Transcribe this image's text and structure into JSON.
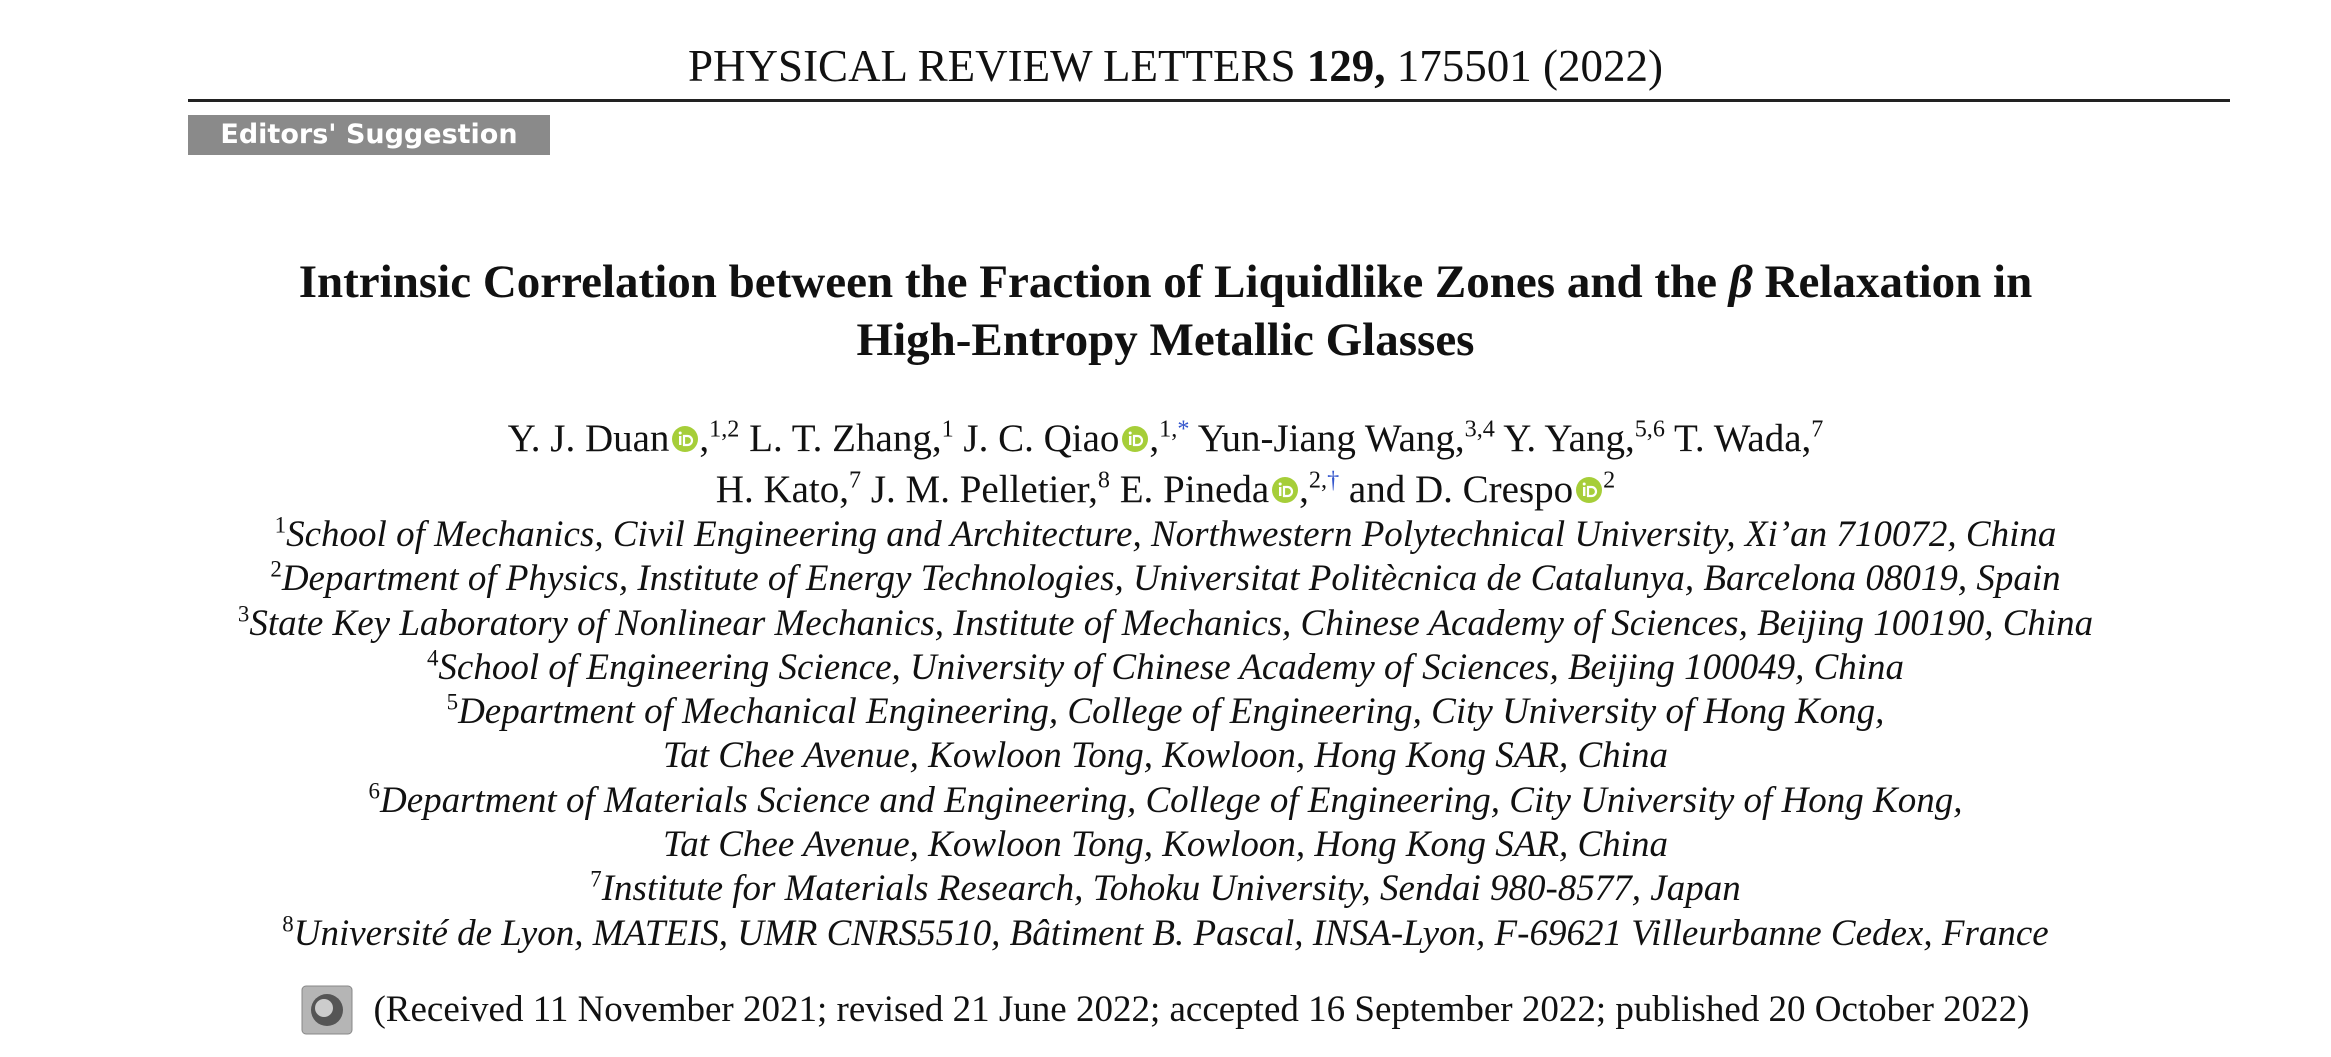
{
  "header": {
    "journal": "PHYSICAL REVIEW LETTERS",
    "volume": "129,",
    "page": "175501",
    "year": "(2022)"
  },
  "badge": "Editors' Suggestion",
  "title": {
    "line1": "Intrinsic Correlation between the Fraction of Liquidlike Zones and the",
    "symbol": "β",
    "line1_end": "Relaxation in",
    "line2": "High-Entropy Metallic Glasses"
  },
  "author_lines": [
    [
      {
        "name": "Y. J. Duan",
        "orcid": true,
        "sep": ",",
        "sup": "1,2"
      },
      {
        "name": "L. T. Zhang",
        "orcid": false,
        "sep": ",",
        "sup": "1"
      },
      {
        "name": "J. C. Qiao",
        "orcid": true,
        "sep": ",",
        "sup": "1,",
        "note": "*"
      },
      {
        "name": "Yun-Jiang Wang",
        "orcid": false,
        "sep": ",",
        "sup": "3,4"
      },
      {
        "name": "Y. Yang",
        "orcid": false,
        "sep": ",",
        "sup": "5,6"
      },
      {
        "name": "T. Wada",
        "orcid": false,
        "sep": ",",
        "sup": "7"
      }
    ],
    [
      {
        "name": "H. Kato",
        "orcid": false,
        "sep": ",",
        "sup": "7"
      },
      {
        "name": "J. M. Pelletier",
        "orcid": false,
        "sep": ",",
        "sup": "8"
      },
      {
        "name": "E. Pineda",
        "orcid": true,
        "sep": ",",
        "sup": "2,",
        "note": "†"
      },
      {
        "prefix": "and",
        "name": "D. Crespo",
        "orcid": true,
        "sup": "2"
      }
    ]
  ],
  "affiliations": [
    {
      "num": "1",
      "lines": [
        "School of Mechanics, Civil Engineering and Architecture, Northwestern Polytechnical University, Xi’an 710072, China"
      ]
    },
    {
      "num": "2",
      "lines": [
        "Department of Physics, Institute of Energy Technologies, Universitat Politècnica de Catalunya, Barcelona 08019, Spain"
      ]
    },
    {
      "num": "3",
      "lines": [
        "State Key Laboratory of Nonlinear Mechanics, Institute of Mechanics, Chinese Academy of Sciences, Beijing 100190, China"
      ]
    },
    {
      "num": "4",
      "lines": [
        "School of Engineering Science, University of Chinese Academy of Sciences, Beijing 100049, China"
      ]
    },
    {
      "num": "5",
      "lines": [
        "Department of Mechanical Engineering, College of Engineering, City University of Hong Kong,",
        "Tat Chee Avenue, Kowloon Tong, Kowloon, Hong Kong SAR, China"
      ]
    },
    {
      "num": "6",
      "lines": [
        "Department of Materials Science and Engineering, College of Engineering, City University of Hong Kong,",
        "Tat Chee Avenue, Kowloon Tong, Kowloon, Hong Kong SAR, China"
      ]
    },
    {
      "num": "7",
      "lines": [
        "Institute for Materials Research, Tohoku University, Sendai 980-8577, Japan"
      ]
    },
    {
      "num": "8",
      "lines": [
        "Université de Lyon, MATEIS, UMR CNRS5510, Bâtiment B. Pascal, INSA-Lyon, F-69621 Villeurbanne Cedex, France"
      ]
    }
  ],
  "received": "(Received 11 November 2021; revised 21 June 2022; accepted 16 September 2022; published 20 October 2022)"
}
